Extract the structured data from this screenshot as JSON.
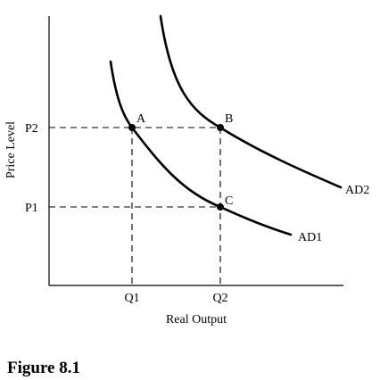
{
  "figure": {
    "caption": "Figure 8.1"
  },
  "axes": {
    "x_label": "Real Output",
    "y_label": "Price Level",
    "x_ticks": [
      "Q1",
      "Q2"
    ],
    "y_ticks": [
      "P2",
      "P1"
    ]
  },
  "curves": [
    {
      "name": "AD2"
    },
    {
      "name": "AD1"
    }
  ],
  "points": [
    {
      "label": "A"
    },
    {
      "label": "B"
    },
    {
      "label": "C"
    }
  ],
  "colors": {
    "ink": "#000000",
    "background": "#ffffff"
  }
}
